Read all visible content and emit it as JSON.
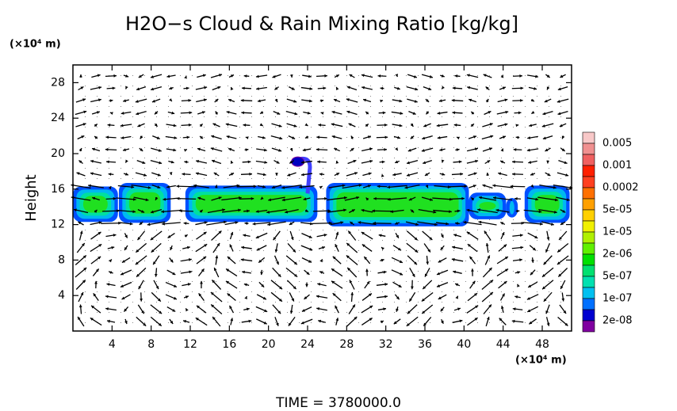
{
  "chart_data": {
    "type": "contour",
    "title": "H2O−s Cloud & Rain Mixing Ratio [kg/kg]",
    "y_unit": "(×10⁴ m)",
    "ylabel": "Height",
    "x_unit": "(×10⁴ m)",
    "footer": "TIME = 3780000.0",
    "xlim": [
      0,
      51
    ],
    "ylim": [
      0,
      30
    ],
    "xticks": [
      4,
      8,
      12,
      16,
      20,
      24,
      28,
      32,
      36,
      40,
      44,
      48
    ],
    "yticks": [
      4,
      8,
      12,
      16,
      20,
      24,
      28
    ],
    "colorbar": {
      "labels": [
        "0.005",
        "0.001",
        "0.0002",
        "5e-05",
        "1e-05",
        "2e-06",
        "5e-07",
        "1e-07",
        "2e-08"
      ],
      "colors": [
        "#f8c8c8",
        "#f09090",
        "#f06060",
        "#ff2000",
        "#ff4020",
        "#ff7000",
        "#ffa000",
        "#ffd000",
        "#f0f000",
        "#b0f000",
        "#60f000",
        "#00e000",
        "#00e070",
        "#00e0b0",
        "#00c0f0",
        "#0070ff",
        "#0000d0",
        "#8000a0"
      ]
    }
  }
}
